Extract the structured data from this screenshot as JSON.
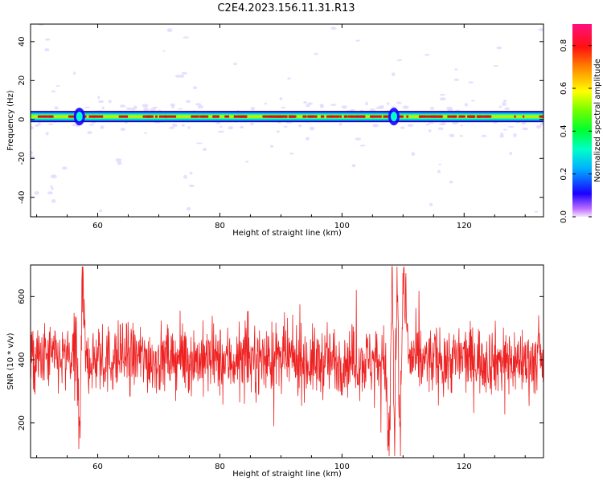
{
  "title": "C2E4.2023.156.11.31.R13",
  "colors": {
    "snr_line": "#ee2222",
    "band_core": "#dd1111",
    "scatter": "#e3d6ff"
  },
  "chart_data": [
    {
      "type": "heatmap",
      "xlabel": "Height of straight line (km)",
      "ylabel": "Frequency (Hz)",
      "xlim": [
        49,
        133
      ],
      "ylim": [
        -50,
        49
      ],
      "xticks": [
        60,
        80,
        100,
        120
      ],
      "yticks": [
        -40,
        -20,
        0,
        20,
        40
      ],
      "grid": false,
      "band_center_hz": 1.5,
      "band_features_km": [
        57,
        108.5
      ],
      "colorbar": {
        "label": "Normalized spectral amplitude",
        "range": [
          0.0,
          0.9
        ],
        "ticks": [
          0.0,
          0.2,
          0.4,
          0.6,
          0.8
        ],
        "colormap": "rainbow"
      }
    },
    {
      "type": "line",
      "xlabel": "Height of straight line (km)",
      "ylabel": "SNR (10 * v/v)",
      "xlim": [
        49,
        133
      ],
      "ylim": [
        90,
        700
      ],
      "xticks": [
        60,
        80,
        100,
        120
      ],
      "yticks": [
        200,
        400,
        600
      ],
      "grid": false,
      "series": [
        {
          "x": [
            49,
            52,
            55,
            56.5,
            57,
            57.5,
            58,
            60,
            65,
            70,
            75,
            80,
            85,
            90,
            95,
            100,
            105,
            107,
            107.8,
            108.2,
            108.6,
            109,
            109.5,
            110,
            111,
            115,
            120,
            125,
            130,
            133
          ],
          "values": [
            390,
            410,
            395,
            420,
            130,
            650,
            400,
            395,
            410,
            400,
            405,
            395,
            400,
            405,
            390,
            400,
            395,
            405,
            120,
            680,
            150,
            640,
            110,
            690,
            400,
            395,
            405,
            400,
            395,
            400
          ]
        }
      ]
    }
  ]
}
